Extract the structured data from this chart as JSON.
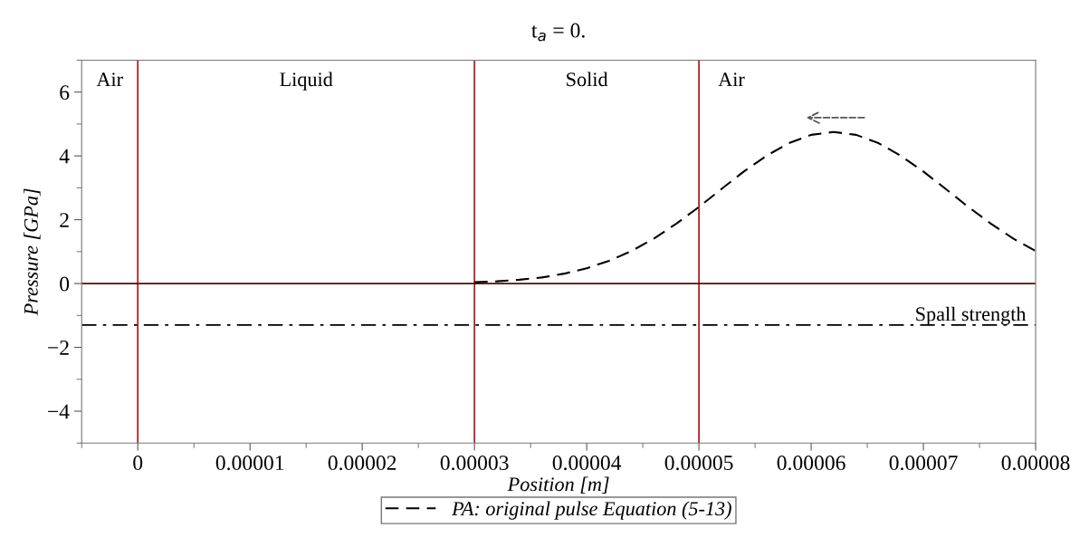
{
  "chart_data": {
    "type": "line",
    "title": "t$_{a}$ = 0.",
    "xlabel": "Position [m]",
    "ylabel": "Pressure [GPa]",
    "xlim": [
      -5e-06,
      8e-05
    ],
    "xticks": [
      0,
      {
        "value": 1e-05,
        "label": "0.00001"
      },
      {
        "value": 2e-05,
        "label": "0.00002"
      },
      {
        "value": 3e-05,
        "label": "0.00003"
      },
      {
        "value": 4e-05,
        "label": "0.00004"
      },
      {
        "value": 5e-05,
        "label": "0.00005"
      },
      {
        "value": 6e-05,
        "label": "0.00006"
      },
      {
        "value": 7e-05,
        "label": "0.00007"
      },
      {
        "value": 8e-05,
        "label": "0.00008"
      }
    ],
    "ylim": [
      -5,
      7
    ],
    "yticks": [
      {
        "value": -4,
        "label": "−4"
      },
      {
        "value": -2,
        "label": "−2"
      },
      0,
      2,
      4,
      6
    ],
    "series": [
      {
        "name": "PA: original pulse Equation (5-13)",
        "color": "#000000",
        "line_style": "dashed",
        "x": [
          3e-05,
          3.2e-05,
          3.4e-05,
          3.6e-05,
          3.8e-05,
          4e-05,
          4.2e-05,
          4.4e-05,
          4.6e-05,
          4.8e-05,
          5e-05,
          5.2e-05,
          5.4e-05,
          5.6e-05,
          5.8e-05,
          6e-05,
          6.2e-05,
          6.4e-05,
          6.6e-05,
          6.8e-05,
          7e-05,
          7.2e-05,
          7.4e-05,
          7.6e-05,
          7.8e-05,
          8e-05
        ],
        "values": [
          0.04,
          0.07,
          0.12,
          0.19,
          0.31,
          0.48,
          0.71,
          1.02,
          1.41,
          1.88,
          2.4,
          2.96,
          3.51,
          4.0,
          4.4,
          4.66,
          4.75,
          4.66,
          4.4,
          4.0,
          3.51,
          2.96,
          2.4,
          1.88,
          1.41,
          1.02
        ]
      }
    ],
    "ref_lines": [
      {
        "axis": "x",
        "value": 0,
        "color": "#b22222",
        "line_style": "solid"
      },
      {
        "axis": "x",
        "value": 3e-05,
        "color": "#b22222",
        "line_style": "solid"
      },
      {
        "axis": "x",
        "value": 5e-05,
        "color": "#b22222",
        "line_style": "solid"
      },
      {
        "axis": "y",
        "value": 0,
        "color": "#4a1010",
        "line_style": "solid"
      },
      {
        "axis": "y",
        "value": -1.3,
        "color": "#000000",
        "line_style": "dashdot",
        "label": "Spall strength"
      }
    ],
    "annotations": [
      "Air",
      "Liquid",
      "Solid",
      "Air"
    ],
    "legend": "bottom",
    "grid": false
  }
}
